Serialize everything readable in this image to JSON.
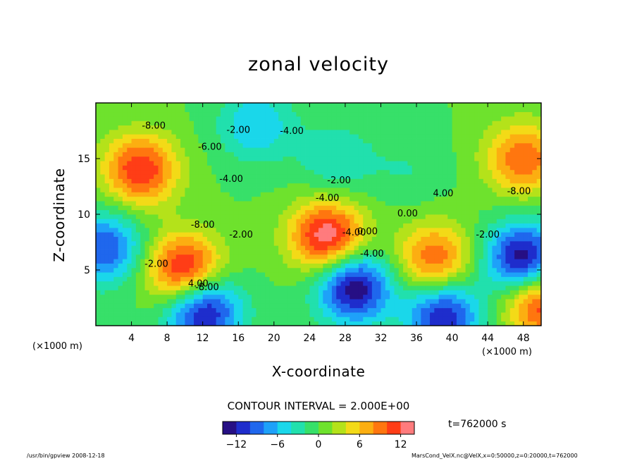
{
  "chart_data": {
    "type": "heatmap",
    "title": "zonal velocity",
    "xlabel": "X-coordinate",
    "ylabel": "Z-coordinate",
    "x_unit_label": "(×1000 m)",
    "x_ticks": [
      4,
      8,
      12,
      16,
      20,
      24,
      28,
      32,
      36,
      40,
      44,
      48
    ],
    "y_ticks": [
      5,
      10,
      15
    ],
    "xlim": [
      0,
      50
    ],
    "ylim": [
      0,
      20
    ],
    "contour_interval_label": "CONTOUR INTERVAL = 2.000E+00",
    "colorbar": {
      "ticks": [
        -12,
        -6,
        0,
        6,
        12
      ],
      "range": [
        -14,
        14
      ],
      "colors": [
        "#2a0060",
        "#1e2fd0",
        "#1f8cff",
        "#19e0e8",
        "#27e07a",
        "#7ee21c",
        "#f2e218",
        "#ff9c0e",
        "#ff3a10",
        "#ff9ab0"
      ]
    },
    "contour_labels": [
      {
        "text": "-8.00",
        "x": 6.5,
        "z": 17.7
      },
      {
        "text": "-6.00",
        "x": 12.8,
        "z": 15.8
      },
      {
        "text": "-4.00",
        "x": 15.2,
        "z": 12.9
      },
      {
        "text": "-4.00",
        "x": 22,
        "z": 17.2
      },
      {
        "text": "-2.00",
        "x": 16,
        "z": 17.3
      },
      {
        "text": "-8.00",
        "x": 12,
        "z": 8.8
      },
      {
        "text": "-2.00",
        "x": 16.3,
        "z": 7.9
      },
      {
        "text": "-2.00",
        "x": 6.8,
        "z": 5.3
      },
      {
        "text": "4.00",
        "x": 11.5,
        "z": 3.5
      },
      {
        "text": "-8.00",
        "x": 12.5,
        "z": 3.2
      },
      {
        "text": "-4.00",
        "x": 26,
        "z": 11.2
      },
      {
        "text": "-2.00",
        "x": 27.3,
        "z": 12.8
      },
      {
        "text": "-4.00",
        "x": 29,
        "z": 8.1
      },
      {
        "text": "0.00",
        "x": 30.5,
        "z": 8.2
      },
      {
        "text": "-4.00",
        "x": 31,
        "z": 6.2
      },
      {
        "text": "0.00",
        "x": 35,
        "z": 9.8
      },
      {
        "text": "4.00",
        "x": 39,
        "z": 11.6
      },
      {
        "text": "-8.00",
        "x": 47.5,
        "z": 11.8
      },
      {
        "text": "-2.00",
        "x": 44,
        "z": 7.9
      }
    ],
    "max_regions": [
      {
        "x": 10,
        "z": 5,
        "value": 14
      },
      {
        "x": 26,
        "z": 8,
        "value": 14
      },
      {
        "x": 38,
        "z": 6,
        "value": 10
      },
      {
        "x": 5,
        "z": 14,
        "value": 12
      },
      {
        "x": 48,
        "z": 15,
        "value": 10
      },
      {
        "x": 50,
        "z": 2,
        "value": 12
      }
    ],
    "min_regions": [
      {
        "x": 12,
        "z": 1.5,
        "value": -14
      },
      {
        "x": 29,
        "z": 3.5,
        "value": -14
      },
      {
        "x": 48,
        "z": 6,
        "value": -14
      },
      {
        "x": 1,
        "z": 7,
        "value": -10
      },
      {
        "x": 39,
        "z": 1,
        "value": -12
      },
      {
        "x": 27,
        "z": 15,
        "value": -4
      },
      {
        "x": 35,
        "z": 14,
        "value": -2
      },
      {
        "x": 18,
        "z": 18,
        "value": -6
      }
    ]
  },
  "time_label": "t=762000 s",
  "footer_left": "/usr/bin/gpview   2008-12-18",
  "footer_right": "MarsCond_VelX.nc@VelX,x=0:50000,z=0:20000,t=762000"
}
